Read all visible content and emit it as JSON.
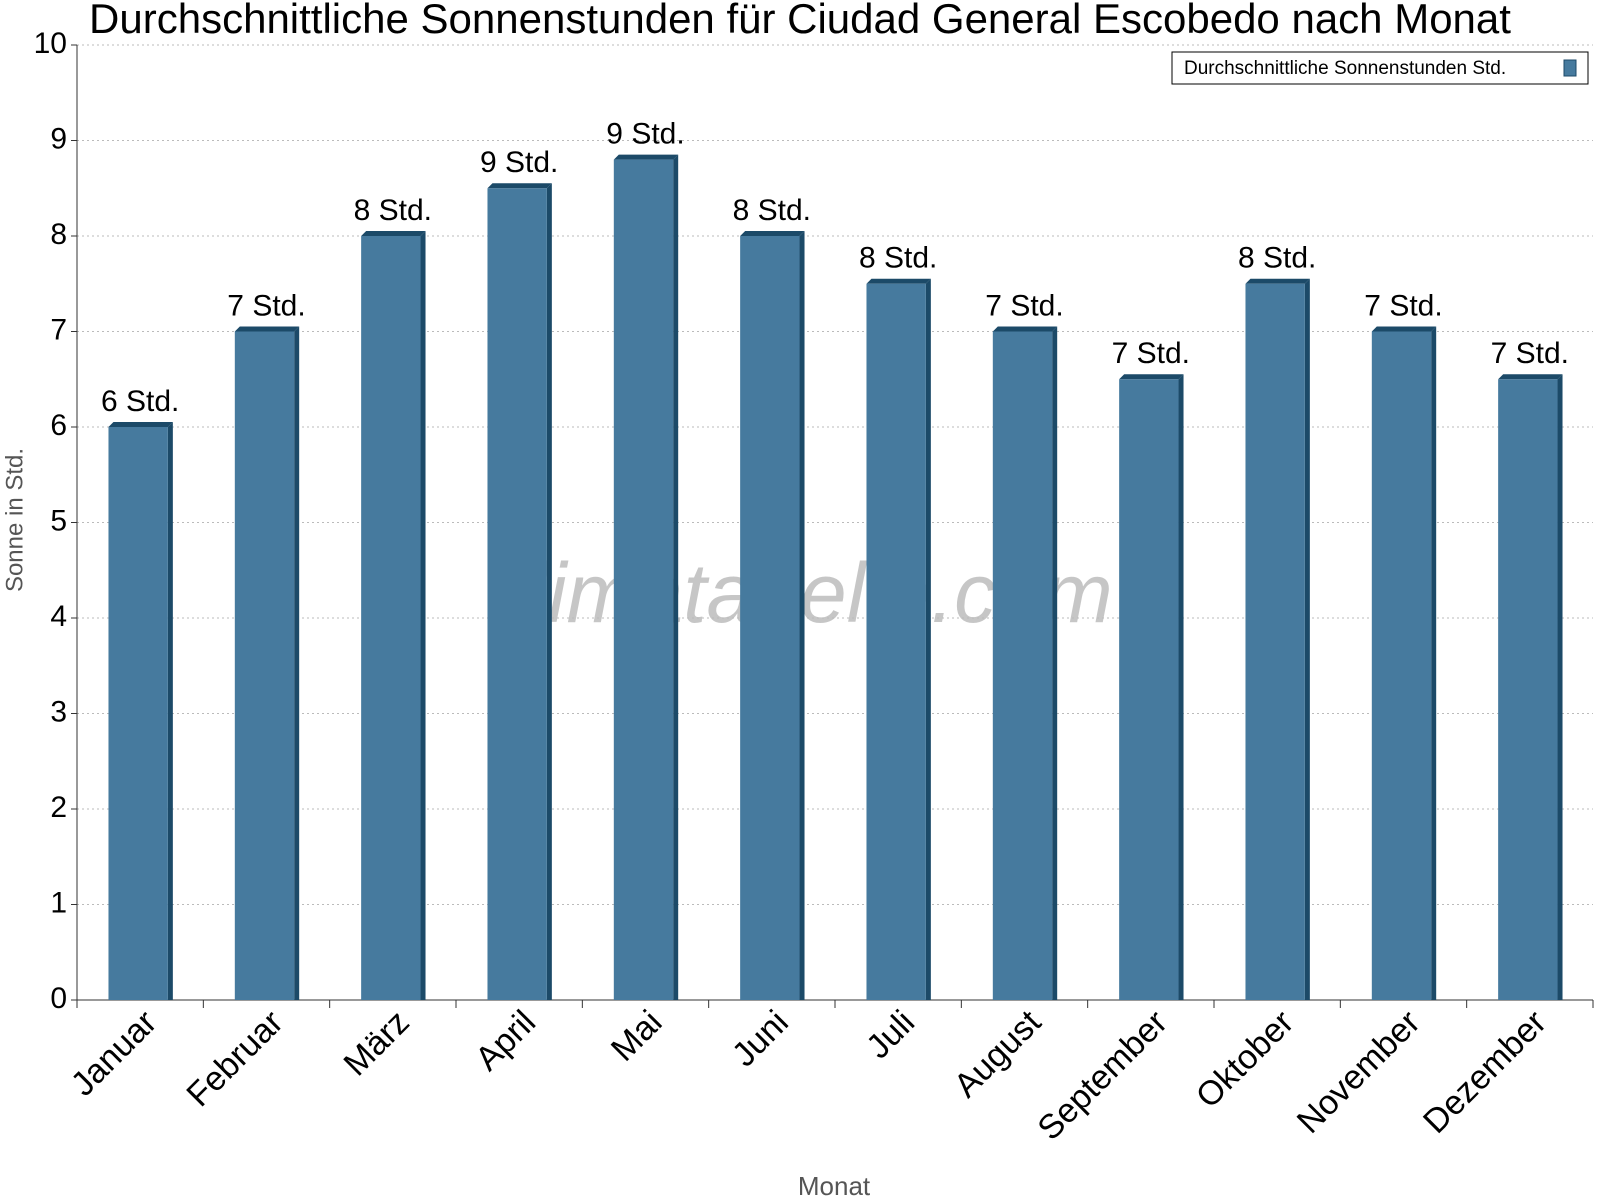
{
  "chart_data": {
    "type": "bar",
    "title": "Durchschnittliche Sonnenstunden für Ciudad General Escobedo nach Monat",
    "x_label": "Monat",
    "y_label": "Sonne in Std.",
    "watermark": "klimatabelle.com",
    "categories": [
      "Januar",
      "Februar",
      "März",
      "April",
      "Mai",
      "Juni",
      "Juli",
      "August",
      "September",
      "Oktober",
      "November",
      "Dezember"
    ],
    "series": [
      {
        "name": "Durchschnittliche Sonnenstunden Std.",
        "color": "#467a9e",
        "values": [
          6,
          7,
          8,
          8.5,
          8.8,
          8,
          7.5,
          7,
          6.5,
          7.5,
          7,
          6.5
        ],
        "value_labels": [
          "6 Std.",
          "7 Std.",
          "8 Std.",
          "9 Std.",
          "9 Std.",
          "8 Std.",
          "8 Std.",
          "7 Std.",
          "7 Std.",
          "8 Std.",
          "7 Std.",
          "7 Std."
        ]
      }
    ],
    "ylim": [
      0,
      10
    ],
    "yticks": [
      0,
      1,
      2,
      3,
      4,
      5,
      6,
      7,
      8,
      9,
      10
    ],
    "grid": true,
    "legend": "top-right"
  }
}
